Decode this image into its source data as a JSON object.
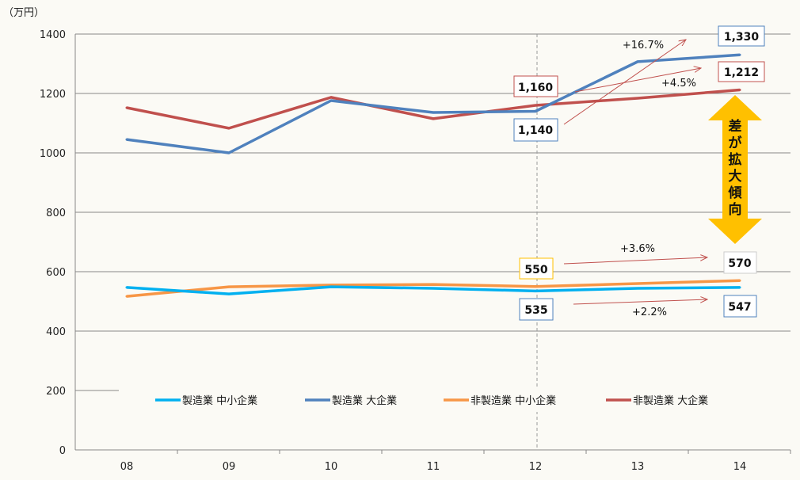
{
  "chart_data": {
    "type": "line",
    "unit_label": "（万円）",
    "categories": [
      "08",
      "09",
      "10",
      "11",
      "12",
      "13",
      "14"
    ],
    "ylim": [
      0,
      1400
    ],
    "yticks": [
      0,
      200,
      400,
      600,
      800,
      1000,
      1200,
      1400
    ],
    "grid": true,
    "legend_position": "bottom-inside",
    "series": [
      {
        "name": "製造業 中小企業",
        "color": "#00b0f0",
        "values": [
          547,
          525,
          549,
          544,
          535,
          544,
          547
        ]
      },
      {
        "name": "製造業 大企業",
        "color": "#4f81bd",
        "values": [
          1045,
          1000,
          1176,
          1136,
          1140,
          1307,
          1330
        ]
      },
      {
        "name": "非製造業 中小企業",
        "color": "#f79646",
        "values": [
          517,
          549,
          555,
          557,
          550,
          560,
          570
        ]
      },
      {
        "name": "非製造業 大企業",
        "color": "#c0504d",
        "values": [
          1152,
          1083,
          1187,
          1115,
          1160,
          1184,
          1212
        ]
      }
    ],
    "annotations": {
      "labels": [
        "1,330",
        "1,212",
        "1,160",
        "1,140",
        "550",
        "570",
        "535",
        "547"
      ],
      "growth": [
        "+16.7%",
        "+4.5%",
        "+3.6%",
        "+2.2%"
      ],
      "arrow_text": [
        "差",
        "が",
        "拡",
        "大",
        "傾",
        "向"
      ]
    }
  }
}
